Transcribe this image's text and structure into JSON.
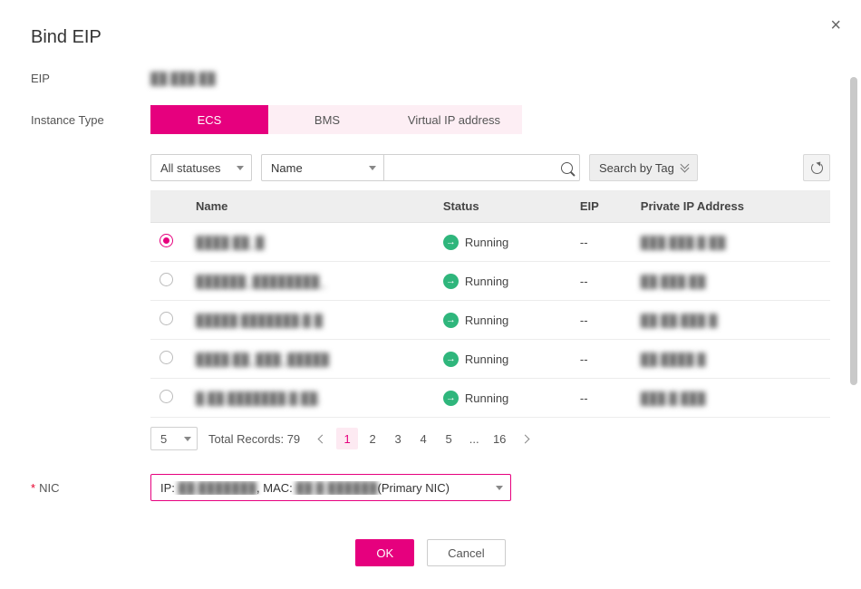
{
  "title": "Bind EIP",
  "labels": {
    "eip": "EIP",
    "instance_type": "Instance Type",
    "nic": "NIC"
  },
  "eip_value_masked": "██.███.██",
  "instance_tabs": [
    {
      "label": "ECS",
      "active": true
    },
    {
      "label": "BMS",
      "active": false
    },
    {
      "label": "Virtual IP address",
      "active": false
    }
  ],
  "filters": {
    "status_select": "All statuses",
    "search_field_select": "Name",
    "search_placeholder": "",
    "tag_button": "Search by Tag"
  },
  "table": {
    "columns": [
      "Name",
      "Status",
      "EIP",
      "Private IP Address"
    ],
    "rows": [
      {
        "selected": true,
        "name_masked": "████ ██_█",
        "status": "Running",
        "eip": "--",
        "priv_masked": "███.███.█ ██"
      },
      {
        "selected": false,
        "name_masked": "██████_████████_",
        "status": "Running",
        "eip": "--",
        "priv_masked": "██.███.██"
      },
      {
        "selected": false,
        "name_masked": "█████ ███████.█ █",
        "status": "Running",
        "eip": "--",
        "priv_masked": "██ ██.███ █"
      },
      {
        "selected": false,
        "name_masked": "████.██_███_█████",
        "status": "Running",
        "eip": "--",
        "priv_masked": "██.████ █"
      },
      {
        "selected": false,
        "name_masked": "█.██.███████.█ ██.",
        "status": "Running",
        "eip": "--",
        "priv_masked": "███.█ ███"
      }
    ]
  },
  "pagination": {
    "page_size": "5",
    "total_text": "Total Records: 79",
    "pages": [
      "1",
      "2",
      "3",
      "4",
      "5",
      "...",
      "16"
    ],
    "current": "1"
  },
  "nic": {
    "prefix_ip": "IP: ",
    "ip_masked": "██.███████",
    "prefix_mac": ", MAC: ",
    "mac_masked": "██ █ ██████",
    "suffix": "(Primary NIC)"
  },
  "buttons": {
    "ok": "OK",
    "cancel": "Cancel"
  },
  "colors": {
    "accent": "#e6007e",
    "accent_light": "#fdeef4",
    "status_running": "#2fb67c",
    "header_bg": "#eeeeee",
    "border": "#d0d0d0"
  }
}
